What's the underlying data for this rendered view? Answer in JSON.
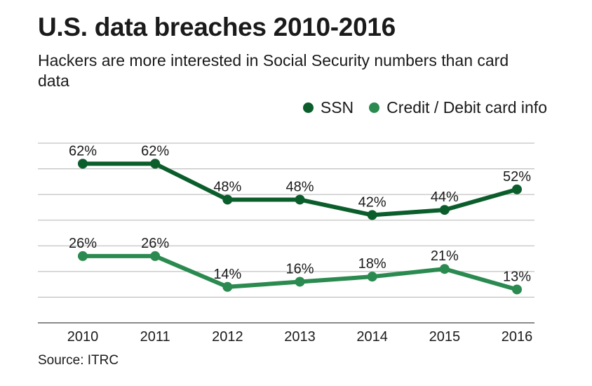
{
  "header": {
    "title": "U.S. data breaches 2010-2016",
    "subtitle": "Hackers are more interested in Social Security numbers than card data"
  },
  "footer": {
    "source": "Source: ITRC"
  },
  "chart_data": {
    "type": "line",
    "title": "U.S. data breaches 2010-2016",
    "subtitle": "Hackers are more interested in Social Security numbers than card data",
    "xlabel": "",
    "ylabel": "",
    "x": [
      "2010",
      "2011",
      "2012",
      "2013",
      "2014",
      "2015",
      "2016"
    ],
    "ylim": [
      0,
      70
    ],
    "grid": true,
    "legend_position": "top-right",
    "value_suffix": "%",
    "series": [
      {
        "name": "SSN",
        "color": "#0b5e2b",
        "values": [
          62,
          62,
          48,
          48,
          42,
          44,
          52
        ]
      },
      {
        "name": "Credit / Debit card info",
        "color": "#2a8a4f",
        "values": [
          26,
          26,
          14,
          16,
          18,
          21,
          13
        ]
      }
    ]
  }
}
